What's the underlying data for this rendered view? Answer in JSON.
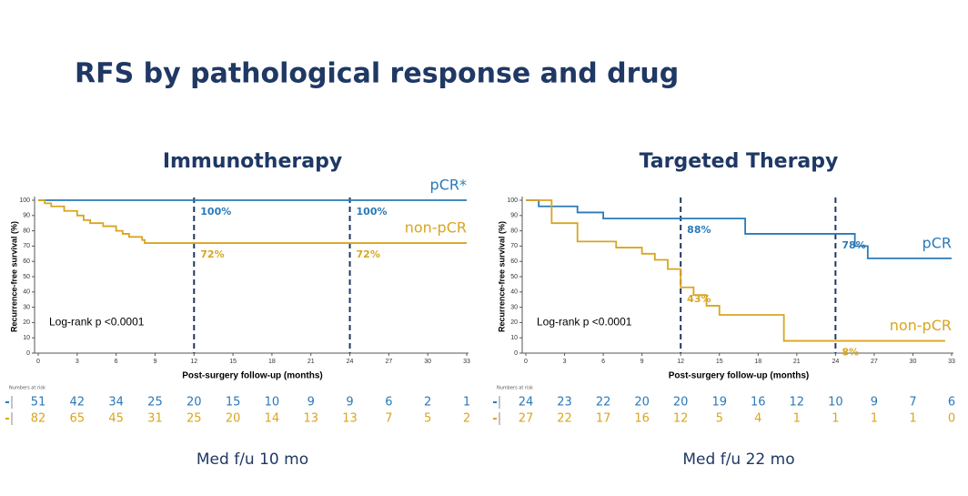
{
  "title": "RFS by pathological response and drug",
  "chart_data": [
    {
      "type": "line",
      "title": "Immunotherapy",
      "footnote": "Med f/u 10 mo",
      "xlabel": "Post-surgery follow-up (months)",
      "ylabel": "Recurrence-free survival (%)",
      "annotation": "Log-rank p <0.0001",
      "xlim": [
        0,
        33
      ],
      "ylim": [
        0,
        100
      ],
      "xticks": [
        0,
        3,
        6,
        9,
        12,
        15,
        18,
        21,
        24,
        27,
        30,
        33
      ],
      "yticks": [
        0,
        10,
        20,
        30,
        40,
        50,
        60,
        70,
        80,
        90,
        100
      ],
      "vlines": [
        12,
        24
      ],
      "at_risk_label": "Numbers at risk",
      "series": [
        {
          "name": "pCR*",
          "color": "#2a7ab8",
          "x": [
            0,
            33
          ],
          "values": [
            100,
            100
          ],
          "landmarks": [
            {
              "x": 12,
              "y": 100,
              "label": "100%"
            },
            {
              "x": 24,
              "y": 100,
              "label": "100%"
            }
          ],
          "at_risk": [
            51,
            42,
            34,
            25,
            20,
            15,
            10,
            9,
            9,
            6,
            2,
            1
          ]
        },
        {
          "name": "non-pCR",
          "color": "#d9a520",
          "x": [
            0,
            0.5,
            0.5,
            1,
            1,
            2,
            2,
            3,
            3,
            3.5,
            3.5,
            4,
            4,
            5,
            5,
            6,
            6,
            6.5,
            6.5,
            7,
            7,
            8,
            8,
            8.2,
            8.2,
            33
          ],
          "values": [
            100,
            100,
            98,
            98,
            96,
            96,
            93,
            93,
            90,
            90,
            87,
            87,
            85,
            85,
            83,
            83,
            80,
            80,
            78,
            78,
            76,
            76,
            74,
            74,
            72,
            72
          ],
          "landmarks": [
            {
              "x": 12,
              "y": 72,
              "label": "72%"
            },
            {
              "x": 24,
              "y": 72,
              "label": "72%"
            }
          ],
          "at_risk": [
            82,
            65,
            45,
            31,
            25,
            20,
            14,
            13,
            13,
            7,
            5,
            2
          ]
        }
      ]
    },
    {
      "type": "line",
      "title": "Targeted Therapy",
      "footnote": "Med f/u 22 mo",
      "xlabel": "Post-surgery follow-up (months)",
      "ylabel": "Recurrence-free survival (%)",
      "annotation": "Log-rank p <0.0001",
      "xlim": [
        0,
        33
      ],
      "ylim": [
        0,
        100
      ],
      "xticks": [
        0,
        3,
        6,
        9,
        12,
        15,
        18,
        21,
        24,
        27,
        30,
        33
      ],
      "yticks": [
        0,
        10,
        20,
        30,
        40,
        50,
        60,
        70,
        80,
        90,
        100
      ],
      "vlines": [
        12,
        24
      ],
      "at_risk_label": "Numbers at risk",
      "series": [
        {
          "name": "pCR",
          "color": "#2a7ab8",
          "x": [
            0,
            1,
            1,
            4,
            4,
            6,
            6,
            17,
            17,
            25.5,
            25.5,
            26.5,
            26.5,
            33
          ],
          "values": [
            100,
            100,
            96,
            96,
            92,
            92,
            88,
            88,
            78,
            78,
            70,
            70,
            62,
            62
          ],
          "landmarks": [
            {
              "x": 12,
              "y": 88,
              "label": "88%"
            },
            {
              "x": 24,
              "y": 78,
              "label": "78%"
            }
          ],
          "at_risk": [
            24,
            23,
            22,
            20,
            20,
            19,
            16,
            12,
            10,
            9,
            7,
            6
          ]
        },
        {
          "name": "non-pCR",
          "color": "#d9a520",
          "x": [
            0,
            2,
            2,
            4,
            4,
            7,
            7,
            9,
            9,
            10,
            10,
            11,
            11,
            12,
            12,
            13,
            13,
            14,
            14,
            15,
            15,
            20,
            20,
            32.5
          ],
          "values": [
            100,
            100,
            85,
            85,
            73,
            73,
            69,
            69,
            65,
            65,
            61,
            61,
            55,
            55,
            43,
            43,
            38,
            38,
            31,
            31,
            25,
            25,
            8,
            8
          ],
          "landmarks": [
            {
              "x": 12,
              "y": 43,
              "label": "43%"
            },
            {
              "x": 24,
              "y": 8,
              "label": "8%"
            }
          ],
          "at_risk": [
            27,
            22,
            17,
            16,
            12,
            5,
            4,
            1,
            1,
            1,
            1,
            0
          ]
        }
      ]
    }
  ]
}
